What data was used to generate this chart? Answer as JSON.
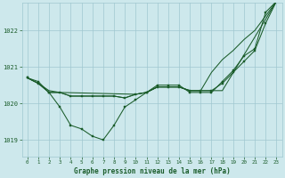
{
  "background_color": "#cde8ec",
  "grid_color": "#a0c8d0",
  "line_color": "#1a5c2a",
  "marker_color": "#1a5c2a",
  "title": "Graphe pression niveau de la mer (hPa)",
  "xlim": [
    -0.5,
    23.5
  ],
  "ylim": [
    1018.55,
    1022.75
  ],
  "yticks": [
    1019,
    1020,
    1021,
    1022
  ],
  "xticks": [
    0,
    1,
    2,
    3,
    4,
    5,
    6,
    7,
    8,
    9,
    10,
    11,
    12,
    13,
    14,
    15,
    16,
    17,
    18,
    19,
    20,
    21,
    22,
    23
  ],
  "series": [
    {
      "x": [
        0,
        1,
        2,
        3,
        4,
        5,
        6,
        7,
        8,
        9,
        10,
        11,
        12,
        13,
        14,
        15,
        16,
        17,
        18,
        19,
        20,
        21,
        22,
        23
      ],
      "y": [
        1020.7,
        1020.6,
        1020.3,
        1019.9,
        1019.4,
        1019.3,
        1019.1,
        1019.0,
        1019.4,
        1019.9,
        1020.1,
        1020.3,
        1020.5,
        1020.5,
        1020.5,
        1020.3,
        1020.3,
        1020.3,
        1020.6,
        1020.9,
        1021.3,
        1021.5,
        1022.5,
        1022.8
      ],
      "marker": true
    },
    {
      "x": [
        0,
        1,
        2,
        3,
        10,
        11,
        12,
        13,
        14,
        15,
        16,
        17,
        18,
        19,
        20,
        21,
        22,
        23
      ],
      "y": [
        1020.7,
        1020.55,
        1020.35,
        1020.3,
        1020.25,
        1020.3,
        1020.45,
        1020.45,
        1020.45,
        1020.35,
        1020.35,
        1020.85,
        1021.2,
        1021.45,
        1021.75,
        1022.0,
        1022.4,
        1022.8
      ],
      "marker": false
    },
    {
      "x": [
        0,
        1,
        2,
        3,
        4,
        5,
        6,
        7,
        8,
        9,
        10,
        11,
        12,
        13,
        14,
        15,
        16,
        17,
        18,
        23
      ],
      "y": [
        1020.7,
        1020.55,
        1020.3,
        1020.3,
        1020.2,
        1020.2,
        1020.2,
        1020.2,
        1020.2,
        1020.15,
        1020.25,
        1020.3,
        1020.45,
        1020.45,
        1020.45,
        1020.35,
        1020.35,
        1020.35,
        1020.35,
        1022.8
      ],
      "marker": false
    },
    {
      "x": [
        0,
        1,
        2,
        3,
        4,
        5,
        6,
        7,
        8,
        9,
        10,
        11,
        12,
        13,
        14,
        15,
        16,
        17,
        18,
        19,
        20,
        21,
        22,
        23
      ],
      "y": [
        1020.7,
        1020.55,
        1020.3,
        1020.3,
        1020.2,
        1020.2,
        1020.2,
        1020.2,
        1020.2,
        1020.15,
        1020.25,
        1020.3,
        1020.45,
        1020.45,
        1020.45,
        1020.35,
        1020.35,
        1020.35,
        1020.55,
        1020.85,
        1021.15,
        1021.45,
        1022.2,
        1022.8
      ],
      "marker": true
    }
  ]
}
